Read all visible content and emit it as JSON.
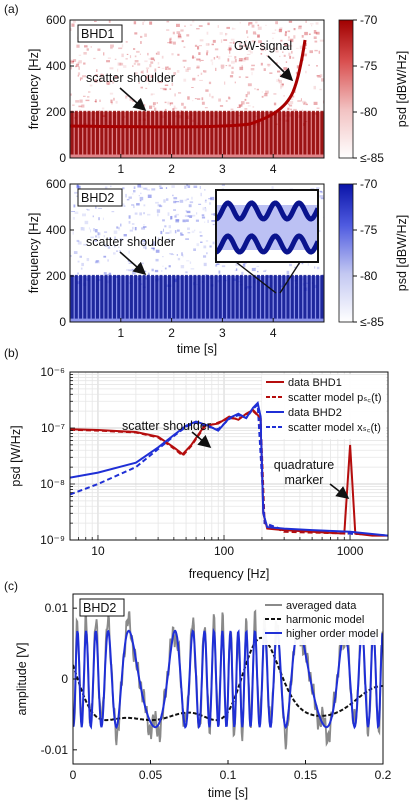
{
  "colors": {
    "red": "#b50d0d",
    "blue": "#1f2fd6",
    "gray": "#8a8a8a",
    "black": "#111111"
  },
  "chart_data": [
    {
      "panel": "(a)",
      "type": "heatmap",
      "label": "BHD1",
      "xlabel": "",
      "ylabel": "frequency [Hz]",
      "xlim": [
        0,
        5
      ],
      "ylim": [
        0,
        600
      ],
      "xticks": [
        "1",
        "2",
        "3",
        "4"
      ],
      "yticks": [
        "0",
        "200",
        "400",
        "600"
      ],
      "colorbar": {
        "label": "psd [dBW/Hz]",
        "ticks": [
          "-70",
          "-75",
          "-80",
          "≤-85"
        ],
        "range": [
          -85,
          -70
        ]
      },
      "annotations": [
        "scatter shoulder",
        "GW-signal"
      ]
    },
    {
      "panel": "(a)",
      "type": "heatmap",
      "label": "BHD2",
      "xlabel": "time [s]",
      "ylabel": "frequency [Hz]",
      "xlim": [
        0,
        5
      ],
      "ylim": [
        0,
        600
      ],
      "xticks": [
        "1",
        "2",
        "3",
        "4"
      ],
      "yticks": [
        "0",
        "200",
        "400",
        "600"
      ],
      "colorbar": {
        "label": "psd [dBW/Hz]",
        "ticks": [
          "-70",
          "-75",
          "-80",
          "≤-85"
        ],
        "range": [
          -85,
          -70
        ]
      },
      "annotations": [
        "scatter shoulder"
      ]
    },
    {
      "panel": "(b)",
      "type": "line",
      "xlabel": "frequency [Hz]",
      "ylabel": "psd [W/Hz]",
      "xscale": "log",
      "yscale": "log",
      "xlim": [
        6,
        2000
      ],
      "ylim": [
        1e-09,
        1e-06
      ],
      "xticks": [
        "10",
        "100",
        "1000"
      ],
      "yticks": [
        "10⁻⁹",
        "10⁻⁸",
        "10⁻⁷",
        "10⁻⁶"
      ],
      "legend": [
        "data BHD1",
        "scatter model pₛ꜀(t)",
        "data BHD2",
        "scatter model xₛ꜀(t)"
      ],
      "annotations": [
        "scatter shoulder",
        "quadrature",
        "marker"
      ],
      "series": [
        {
          "name": "data BHD1",
          "x": [
            6,
            10,
            20,
            30,
            40,
            47,
            55,
            70,
            90,
            110,
            130,
            150,
            170,
            195,
            205,
            220,
            300,
            500,
            900,
            1000,
            1100,
            1500,
            2000
          ],
          "y": [
            9.5e-08,
            9.2e-08,
            8.5e-08,
            7e-08,
            4.5e-08,
            3.4e-08,
            5e-08,
            1.1e-07,
            1.2e-07,
            1.6e-07,
            1.4e-07,
            1.8e-07,
            2.1e-07,
            1.5e-07,
            3e-09,
            1.6e-09,
            1.5e-09,
            1.4e-09,
            1.3e-09,
            5e-08,
            1.3e-09,
            1.2e-09,
            1.2e-09
          ]
        },
        {
          "name": "scatter model pₛ꜀(t)",
          "x": [
            6,
            10,
            20,
            30,
            40,
            47,
            55,
            70,
            90,
            110,
            130,
            150,
            170,
            195,
            210,
            300,
            1000,
            2000
          ],
          "y": [
            9.3e-08,
            9e-08,
            8.3e-08,
            6.8e-08,
            4.3e-08,
            3.2e-08,
            4.8e-08,
            1.05e-07,
            1.25e-07,
            1.5e-07,
            1.45e-07,
            1.75e-07,
            2e-07,
            1.5e-07,
            2e-09,
            1.4e-09,
            1.3e-09,
            1.2e-09
          ]
        },
        {
          "name": "data BHD2",
          "x": [
            6,
            10,
            20,
            30,
            40,
            50,
            60,
            75,
            90,
            110,
            130,
            150,
            170,
            185,
            195,
            205,
            220,
            300,
            500,
            1000,
            2000
          ],
          "y": [
            1.3e-08,
            1.6e-08,
            2.4e-08,
            4.5e-08,
            7.5e-08,
            1.1e-07,
            1.3e-07,
            1.1e-07,
            9e-08,
            1.5e-07,
            1.8e-07,
            1.5e-07,
            2.3e-07,
            2.8e-07,
            1.6e-07,
            3e-09,
            1.7e-09,
            1.6e-09,
            1.5e-09,
            1.4e-09,
            1.2e-09
          ]
        },
        {
          "name": "scatter model xₛ꜀(t)",
          "x": [
            6,
            10,
            20,
            30,
            40,
            50,
            60,
            75,
            90,
            110,
            130,
            150,
            170,
            185,
            210,
            300,
            1000,
            2000
          ],
          "y": [
            6.5e-09,
            1e-08,
            2e-08,
            4.2e-08,
            7.2e-08,
            1.05e-07,
            1.25e-07,
            1.05e-07,
            9.5e-08,
            1.45e-07,
            1.7e-07,
            1.5e-07,
            2.2e-07,
            2.6e-07,
            2e-09,
            1.5e-09,
            1.3e-09,
            1.2e-09
          ]
        }
      ]
    },
    {
      "panel": "(c)",
      "type": "line",
      "label": "BHD2",
      "xlabel": "time [s]",
      "ylabel": "amplitude [V]",
      "xlim": [
        0,
        0.2
      ],
      "ylim": [
        -0.012,
        0.012
      ],
      "xticks": [
        "0",
        "0.05",
        "0.1",
        "0.15",
        "0.2"
      ],
      "yticks": [
        "0.01",
        "0",
        "-0.01"
      ],
      "legend": [
        "averaged data",
        "harmonic model",
        "higher order model"
      ]
    }
  ]
}
